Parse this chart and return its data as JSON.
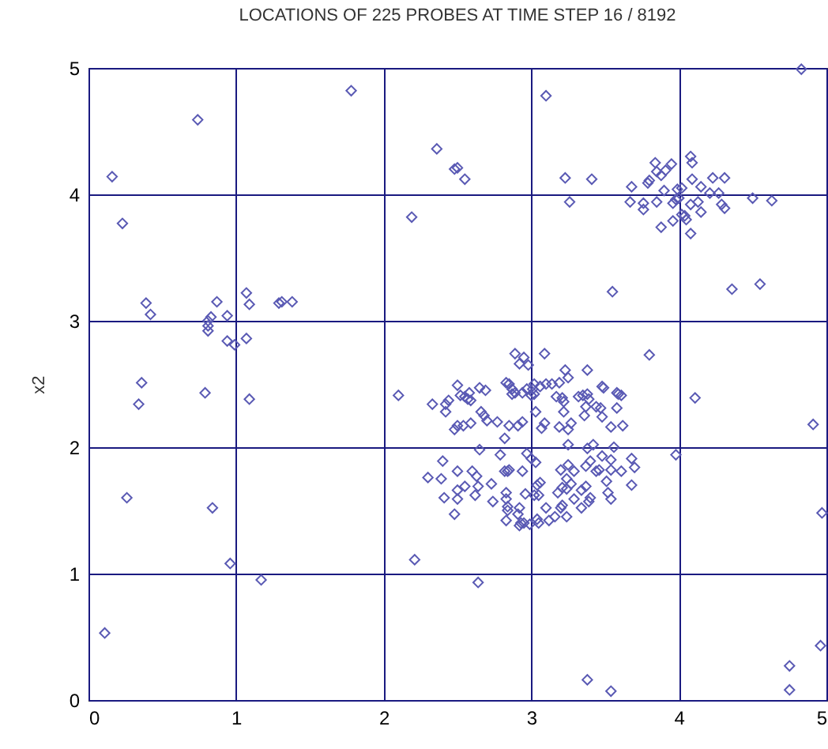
{
  "chart_data": {
    "type": "scatter",
    "title": "LOCATIONS OF 225 PROBES AT TIME STEP 16 / 8192",
    "ylabel": "x2",
    "xlim": [
      0,
      5
    ],
    "ylim": [
      0,
      5
    ],
    "xticks": [
      0,
      1,
      2,
      3,
      4,
      5
    ],
    "yticks": [
      0,
      1,
      2,
      3,
      4,
      5
    ],
    "grid": true,
    "marker": "diamond",
    "series": [
      {
        "color": "#5a5ab4",
        "x": [
          0.16,
          0.23,
          0.74,
          1.78,
          0.39,
          0.42,
          0.87,
          0.83,
          0.81,
          0.81,
          0.81,
          0.94,
          1.07,
          1.09,
          1.29,
          1.31,
          1.38,
          0.94,
          0.99,
          1.07,
          0.36,
          0.79,
          2.19,
          2.36,
          2.48,
          0.34,
          1.09,
          0.26,
          0.84,
          0.96,
          1.17,
          0.11,
          2.1,
          2.21,
          2.3,
          2.39,
          2.4,
          2.41,
          2.33,
          2.42,
          2.42,
          2.5,
          2.55,
          3.1,
          4.83,
          3.23,
          3.41,
          3.26,
          3.55,
          4.36,
          4.55,
          4.5,
          4.63,
          3.8,
          4.11,
          4.91,
          3.98,
          4.97,
          2.64,
          4.96,
          4.75,
          4.75,
          3.38,
          3.54,
          3.68,
          3.67,
          3.76,
          3.76,
          3.8,
          3.79,
          3.85,
          3.9,
          3.84,
          3.85,
          3.88,
          3.91,
          3.95,
          3.96,
          3.98,
          3.99,
          4.02,
          4.0,
          3.96,
          3.88,
          4.02,
          4.04,
          4.05,
          4.08,
          4.08,
          4.09,
          4.09,
          4.15,
          4.08,
          4.13,
          4.15,
          4.23,
          4.31,
          4.21,
          4.27,
          4.29,
          4.31,
          2.89,
          2.95,
          2.92,
          2.98,
          3.09,
          2.83,
          2.87,
          2.87,
          2.97,
          3.01,
          3.02,
          3.0,
          3.06,
          3.1,
          3.14,
          3.19,
          3.23,
          3.25,
          3.38,
          3.48,
          3.58,
          3.61,
          3.35,
          3.37,
          3.36,
          3.21,
          3.22,
          3.44,
          3.03,
          3.54,
          3.19,
          3.09,
          3.07,
          2.94,
          2.91,
          2.85,
          2.82,
          2.97,
          3.0,
          3.03,
          3.25,
          3.38,
          3.48,
          3.54,
          3.54,
          3.44,
          3.2,
          3.25,
          3.29,
          3.27,
          3.34,
          3.52,
          3.18,
          3.1,
          3.2,
          3.21,
          3.34,
          3.06,
          3.04,
          2.96,
          3.02,
          3.05,
          2.94,
          2.84,
          2.83,
          2.84,
          2.91,
          2.92,
          2.95,
          2.99,
          3.05,
          2.5,
          2.44,
          2.52,
          2.55,
          2.59,
          2.69,
          2.66,
          2.68,
          2.7,
          2.77,
          2.5,
          2.54,
          2.59,
          2.65,
          2.79,
          2.82,
          2.85,
          2.5,
          2.6,
          2.63,
          2.73,
          2.55,
          2.5,
          2.64,
          2.5,
          2.62,
          2.74,
          2.83,
          2.84,
          2.92,
          2.83,
          2.93,
          2.48,
          2.48,
          3.49,
          3.59,
          3.62,
          3.48,
          3.47,
          3.58,
          3.38,
          3.39,
          3.25,
          3.27,
          3.22,
          3.42,
          3.56,
          3.68,
          3.7,
          3.61,
          3.51,
          3.68,
          3.46,
          3.37,
          3.4,
          3.37,
          3.4,
          3.39,
          3.54,
          3.24,
          3.29,
          3.21,
          3.24,
          3.24,
          3.16,
          3.12,
          3.04,
          2.58,
          2.65,
          2.57,
          2.85,
          2.89,
          2.94,
          3.02,
          3.17,
          3.32
        ],
        "values": [
          4.14,
          3.77,
          4.59,
          4.82,
          3.14,
          3.05,
          3.15,
          3.03,
          3.0,
          2.96,
          2.92,
          3.04,
          3.22,
          3.13,
          3.14,
          3.15,
          3.15,
          2.84,
          2.81,
          2.86,
          2.51,
          2.43,
          3.82,
          4.36,
          4.2,
          2.34,
          2.38,
          1.6,
          1.52,
          1.08,
          0.95,
          0.53,
          2.41,
          1.11,
          1.76,
          1.75,
          1.89,
          1.6,
          2.34,
          2.34,
          2.28,
          4.21,
          4.12,
          4.78,
          4.99,
          4.13,
          4.12,
          3.94,
          3.23,
          3.25,
          3.29,
          3.97,
          3.95,
          2.73,
          2.39,
          2.18,
          1.94,
          1.48,
          0.93,
          0.43,
          0.27,
          0.08,
          0.16,
          0.07,
          4.06,
          3.94,
          3.93,
          3.88,
          4.11,
          4.09,
          3.94,
          4.03,
          4.25,
          4.18,
          4.15,
          4.19,
          4.24,
          3.93,
          3.96,
          4.04,
          4.05,
          3.97,
          3.79,
          3.74,
          3.84,
          3.83,
          3.8,
          3.69,
          4.3,
          4.25,
          4.12,
          4.06,
          3.92,
          3.94,
          3.86,
          4.13,
          4.13,
          4.01,
          4.01,
          3.92,
          3.89,
          2.74,
          2.71,
          2.66,
          2.65,
          2.74,
          2.51,
          2.46,
          2.42,
          2.46,
          2.46,
          2.42,
          2.41,
          2.48,
          2.5,
          2.5,
          2.51,
          2.61,
          2.55,
          2.61,
          2.48,
          2.43,
          2.41,
          2.41,
          2.32,
          2.25,
          2.39,
          2.36,
          2.32,
          2.28,
          2.16,
          2.16,
          2.19,
          2.15,
          2.2,
          2.17,
          2.17,
          2.07,
          1.95,
          1.91,
          1.88,
          2.02,
          1.99,
          1.93,
          1.9,
          1.82,
          1.81,
          1.82,
          1.86,
          1.81,
          1.71,
          1.66,
          1.64,
          1.64,
          1.52,
          1.52,
          1.54,
          1.52,
          1.72,
          1.7,
          1.63,
          1.62,
          1.62,
          1.81,
          1.81,
          1.59,
          1.5,
          1.47,
          1.38,
          1.4,
          1.39,
          1.4,
          2.49,
          2.37,
          2.41,
          2.4,
          2.37,
          2.45,
          2.28,
          2.25,
          2.21,
          2.2,
          2.17,
          2.17,
          2.19,
          1.98,
          1.94,
          1.81,
          1.82,
          1.81,
          1.81,
          1.77,
          1.71,
          1.69,
          1.66,
          1.69,
          1.59,
          1.62,
          1.57,
          1.64,
          1.53,
          1.52,
          1.42,
          1.4,
          2.14,
          1.47,
          2.47,
          2.42,
          2.17,
          2.24,
          2.31,
          2.31,
          2.42,
          2.38,
          2.14,
          2.19,
          2.28,
          2.02,
          2.0,
          1.91,
          1.84,
          1.81,
          1.73,
          1.7,
          1.82,
          1.85,
          1.89,
          1.69,
          1.6,
          1.57,
          1.59,
          1.75,
          1.59,
          1.68,
          1.67,
          1.45,
          1.45,
          1.42,
          1.43,
          2.43,
          2.47,
          2.38,
          2.5,
          2.43,
          2.43,
          2.5,
          2.4,
          2.4
        ]
      }
    ]
  }
}
